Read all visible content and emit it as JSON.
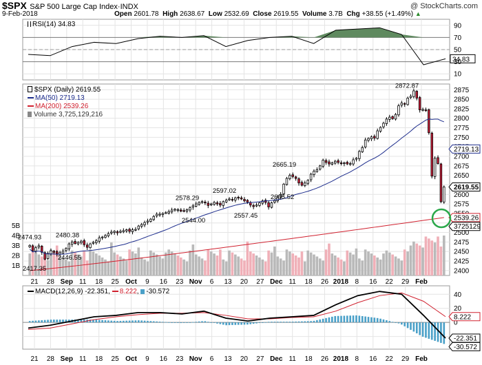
{
  "header": {
    "symbol": "$SPX",
    "name": "S&P 500 Large Cap Index",
    "exchange": "INDX",
    "date": "9-Feb-2018",
    "watermark": "@ StockCharts.com",
    "open_label": "Open",
    "open": "2601.78",
    "high_label": "High",
    "high": "2638.67",
    "low_label": "Low",
    "low": "2532.69",
    "close_label": "Close",
    "close": "2619.55",
    "volume_label": "Volume",
    "volume": "3.7B",
    "chg_label": "Chg",
    "chg": "+38.55 (+1.49%)",
    "chg_arrow": "▲"
  },
  "legends": {
    "rsi": "RSI(14) 34.83",
    "price": "$SPX (Daily) 2619.55",
    "ma50": "MA(50) 2719.13",
    "ma200": "MA(200) 2539.26",
    "volume": "Volume 3,725,129,216",
    "macd_prefix": "MACD(12,26,9)",
    "macd_val": "-22.351",
    "signal_val": "8.222",
    "hist_val": "-30.572"
  },
  "colors": {
    "up": "#ffffff",
    "down": "#cc1f3a",
    "ma50": "#1c2c8c",
    "ma200": "#d0202e",
    "rsi_fill": "#5f8a5f",
    "macd_hist": "#4aa0c8",
    "vol_up": "#b9b9b9",
    "vol_down": "#f0b0b8",
    "highlight_circle": "#2aa84a",
    "label_box": "#1c2c8c"
  },
  "chart_data": [
    {
      "type": "line",
      "title": "RSI(14)",
      "x": [
        "2017-08-16",
        "2017-08-25",
        "2017-09-05",
        "2017-09-15",
        "2017-09-26",
        "2017-10-05",
        "2017-10-16",
        "2017-10-25",
        "2017-11-03",
        "2017-11-14",
        "2017-11-24",
        "2017-12-05",
        "2017-12-14",
        "2017-12-26",
        "2018-01-05",
        "2018-01-16",
        "2018-01-25",
        "2018-01-29",
        "2018-02-05",
        "2018-02-09"
      ],
      "series": [
        {
          "name": "RSI(14)",
          "values": [
            42,
            40,
            55,
            62,
            60,
            68,
            72,
            70,
            73,
            55,
            65,
            70,
            72,
            60,
            82,
            84,
            86,
            75,
            25,
            34.83
          ]
        }
      ],
      "yticks": [
        10,
        30,
        50,
        70,
        90
      ],
      "ylim": [
        0,
        100
      ]
    },
    {
      "type": "candlestick",
      "title": "$SPX (Daily) 2619.55",
      "ylim": [
        2387,
        2890
      ],
      "yticks": [
        2400,
        2425,
        2450,
        2475,
        2500,
        2525,
        2550,
        2575,
        2600,
        2625,
        2650,
        2675,
        2700,
        2725,
        2750,
        2775,
        2800,
        2825,
        2850,
        2875
      ],
      "xticks": [
        "21",
        "28",
        "Sep",
        "11",
        "18",
        "25",
        "Oct",
        "9",
        "16",
        "23",
        "Nov",
        "6",
        "13",
        "20",
        "27",
        "Dec",
        "11",
        "18",
        "26",
        "2018",
        "8",
        "16",
        "22",
        "29",
        "Feb"
      ],
      "closes": [
        2466,
        2452,
        2460,
        2465,
        2448,
        2430,
        2445,
        2452,
        2448,
        2444,
        2447,
        2451,
        2458,
        2470,
        2475,
        2471,
        2474,
        2477,
        2468,
        2461,
        2470,
        2474,
        2478,
        2486,
        2488,
        2492,
        2497,
        2501,
        2503,
        2499,
        2503,
        2505,
        2507,
        2503,
        2507,
        2508,
        2517,
        2521,
        2526,
        2530,
        2535,
        2542,
        2548,
        2548,
        2550,
        2552,
        2555,
        2559,
        2561,
        2560,
        2556,
        2557,
        2560,
        2565,
        2570,
        2575,
        2579,
        2581,
        2578,
        2571,
        2575,
        2579,
        2575,
        2572,
        2581,
        2585,
        2588,
        2586,
        2591,
        2592,
        2588,
        2583,
        2580,
        2572,
        2568,
        2572,
        2578,
        2583,
        2579,
        2567,
        2578,
        2584,
        2593,
        2600,
        2627,
        2642,
        2650,
        2647,
        2642,
        2630,
        2624,
        2630,
        2637,
        2653,
        2661,
        2665,
        2675,
        2690,
        2684,
        2680,
        2683,
        2687,
        2684,
        2682,
        2683,
        2680,
        2681,
        2691,
        2695,
        2713,
        2723,
        2743,
        2747,
        2751,
        2748,
        2767,
        2776,
        2787,
        2798,
        2803,
        2799,
        2810,
        2833,
        2840,
        2837,
        2853,
        2858,
        2872,
        2853,
        2822,
        2823,
        2821,
        2762,
        2648,
        2695,
        2681,
        2581,
        2619.55
      ],
      "annotations": [
        {
          "label": "2474.93",
          "value": 2474.93
        },
        {
          "label": "2417.35",
          "value": 2417.35
        },
        {
          "label": "2480.38",
          "value": 2480.38
        },
        {
          "label": "2446.55",
          "value": 2446.55
        },
        {
          "label": "2578.29",
          "value": 2578.29
        },
        {
          "label": "2544.00",
          "value": 2544.0
        },
        {
          "label": "2597.02",
          "value": 2597.02
        },
        {
          "label": "2557.45",
          "value": 2557.45
        },
        {
          "label": "2665.19",
          "value": 2665.19
        },
        {
          "label": "2605.52",
          "value": 2605.52
        },
        {
          "label": "2872.87",
          "value": 2872.87
        }
      ],
      "right_labels": [
        {
          "label": "2719.13",
          "value": 2719.13
        },
        {
          "label": "2619.55",
          "value": 2619.55
        },
        {
          "label": "2539.26",
          "value": 2539.26
        },
        {
          "label": "3725129",
          "value": 2516
        }
      ],
      "volume_axis": {
        "labels": [
          "1B",
          "2B",
          "3B",
          "4B",
          "5B"
        ],
        "values": [
          1,
          2,
          3,
          4,
          5
        ]
      }
    },
    {
      "type": "line",
      "title": "MACD(12,26,9)",
      "series": [
        {
          "name": "MACD",
          "values": [
            -8,
            -4,
            2,
            8,
            10,
            14,
            14,
            12,
            16,
            6,
            2,
            6,
            8,
            10,
            25,
            38,
            44,
            40,
            10,
            -22.351
          ]
        },
        {
          "name": "Signal",
          "values": [
            -10,
            -8,
            -2,
            4,
            8,
            11,
            13,
            13,
            14,
            10,
            5,
            5,
            7,
            8,
            16,
            28,
            38,
            42,
            30,
            8.222
          ]
        }
      ],
      "yticks": [
        -20,
        0,
        20,
        40
      ],
      "ylim": [
        -38,
        52
      ]
    }
  ]
}
